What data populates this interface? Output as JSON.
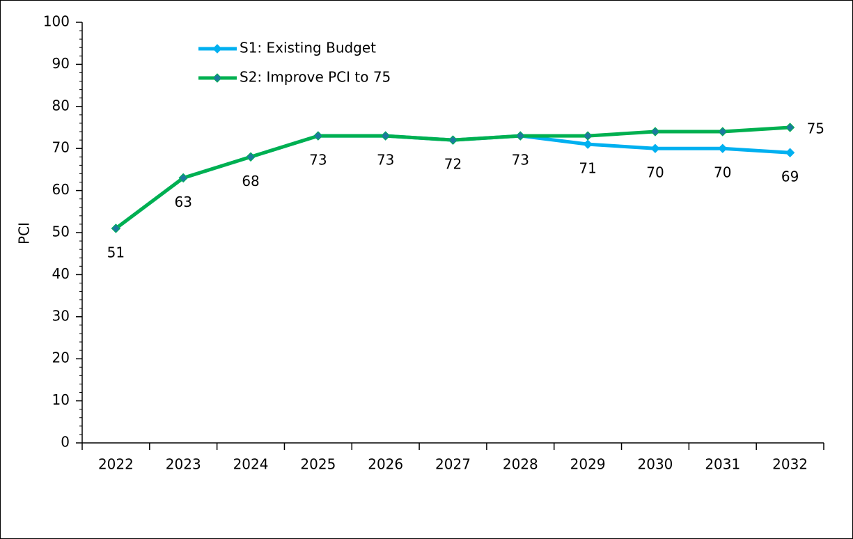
{
  "chart_data": {
    "type": "line",
    "y_label": "PCI",
    "categories": [
      "2022",
      "2023",
      "2024",
      "2025",
      "2026",
      "2027",
      "2028",
      "2029",
      "2030",
      "2031",
      "2032"
    ],
    "series": [
      {
        "name": "S1: Existing Budget",
        "color": "#00b0f0",
        "marker_color": "#00b0f0",
        "labels": "all",
        "values": [
          51,
          63,
          68,
          73,
          73,
          72,
          73,
          71,
          70,
          70,
          69
        ]
      },
      {
        "name": "S2: Improve PCI to 75",
        "color": "#00b050",
        "marker_color": "#1b7a9e",
        "labels": "last",
        "values": [
          51,
          63,
          68,
          73,
          73,
          72,
          73,
          73,
          74,
          74,
          75
        ]
      }
    ],
    "ylim": [
      0,
      100
    ],
    "yticks": [
      0,
      10,
      20,
      30,
      40,
      50,
      60,
      70,
      80,
      90,
      100
    ],
    "legend": "top-left"
  }
}
